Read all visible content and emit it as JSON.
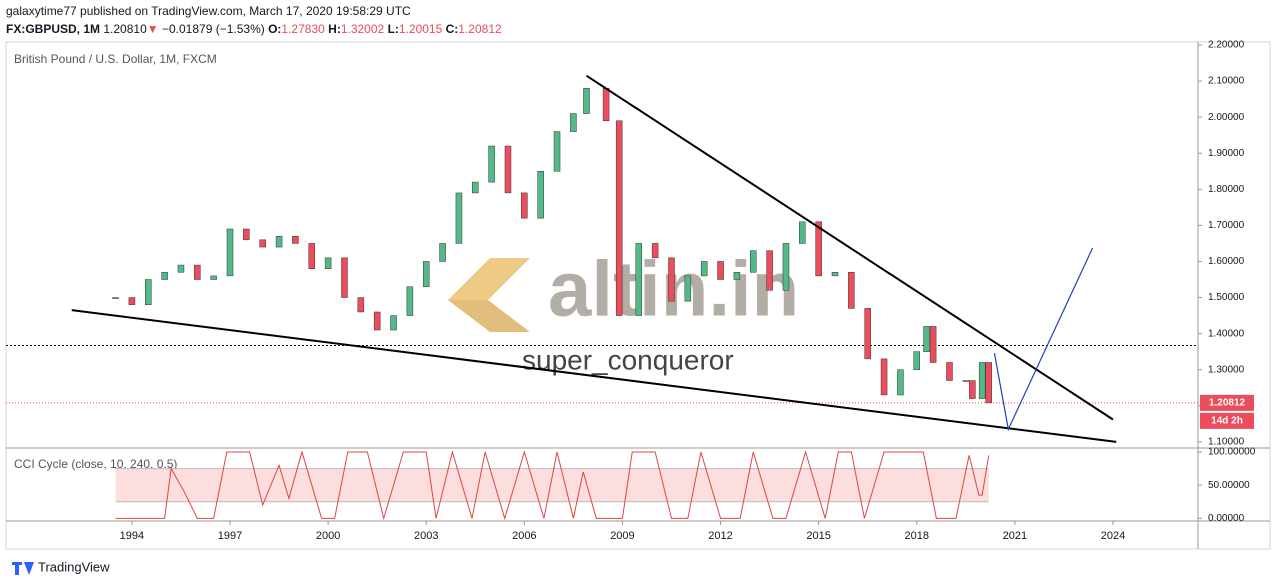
{
  "header": {
    "publisher": "galaxytime77 published on TradingView.com, March 17, 2020 19:58:29 UTC",
    "symbol": "FX:GBPUSD, 1M",
    "last": "1.20810",
    "arrow": "▼",
    "change": "−0.01879 (−1.53%)",
    "ohlc": [
      {
        "label": "O:",
        "value": "1.27830"
      },
      {
        "label": "H:",
        "value": "1.32002"
      },
      {
        "label": "L:",
        "value": "1.20015"
      },
      {
        "label": "C:",
        "value": "1.20812"
      }
    ]
  },
  "footer": "TradingView",
  "watermark": {
    "brand": "altin.in",
    "author": "super_conqueror"
  },
  "chart_data": [
    {
      "type": "candlestick",
      "title": "British Pound / U.S. Dollar, 1M, FXCM",
      "x": [
        1993.5,
        1994,
        1994.5,
        1995,
        1995.5,
        1996,
        1996.5,
        1997,
        1997.5,
        1998,
        1998.5,
        1999,
        1999.5,
        2000,
        2000.5,
        2001,
        2001.5,
        2002,
        2002.5,
        2003,
        2003.5,
        2004,
        2004.5,
        2005,
        2005.5,
        2006,
        2006.5,
        2007,
        2007.5,
        2007.9,
        2008.5,
        2008.9,
        2009.5,
        2010,
        2010.5,
        2011,
        2011.5,
        2012,
        2012.5,
        2013,
        2013.5,
        2014,
        2014.5,
        2015,
        2015.5,
        2016,
        2016.5,
        2017,
        2017.5,
        2018,
        2018.3,
        2018.5,
        2019,
        2019.5,
        2019.7,
        2020,
        2020.2
      ],
      "series": [
        {
          "name": "GBPUSD",
          "up_color": "#53b987",
          "down_color": "#eb4d5c",
          "values": [
            1.5,
            1.48,
            1.55,
            1.57,
            1.59,
            1.55,
            1.56,
            1.69,
            1.66,
            1.64,
            1.67,
            1.65,
            1.58,
            1.61,
            1.5,
            1.46,
            1.41,
            1.45,
            1.53,
            1.6,
            1.65,
            1.79,
            1.82,
            1.92,
            1.79,
            1.72,
            1.85,
            1.96,
            2.01,
            2.08,
            1.99,
            1.45,
            1.65,
            1.61,
            1.49,
            1.56,
            1.6,
            1.55,
            1.57,
            1.63,
            1.52,
            1.65,
            1.71,
            1.56,
            1.57,
            1.47,
            1.33,
            1.23,
            1.3,
            1.35,
            1.42,
            1.32,
            1.27,
            1.27,
            1.22,
            1.32,
            1.20812
          ]
        }
      ],
      "xlim": [
        1990.15,
        2026.6
      ],
      "xticks": [
        1994,
        1997,
        2000,
        2003,
        2006,
        2009,
        2012,
        2015,
        2018,
        2021,
        2024
      ],
      "ylim": [
        1.083,
        2.2
      ],
      "yticks": [
        {
          "value": 1.1,
          "label": "1.10000"
        },
        {
          "value": 1.2,
          "label": "1.20000"
        },
        {
          "value": 1.3,
          "label": "1.30000"
        },
        {
          "value": 1.4,
          "label": "1.40000"
        },
        {
          "value": 1.5,
          "label": "1.50000"
        },
        {
          "value": 1.6,
          "label": "1.60000"
        },
        {
          "value": 1.7,
          "label": "1.70000"
        },
        {
          "value": 1.8,
          "label": "1.80000"
        },
        {
          "value": 1.9,
          "label": "1.90000"
        },
        {
          "value": 2.0,
          "label": "2.00000"
        },
        {
          "value": 2.1,
          "label": "2.10000"
        },
        {
          "value": 2.2,
          "label": "2.20000"
        }
      ],
      "price_label": {
        "value": 1.20812,
        "label": "1.20812"
      },
      "countdown": "14d 2h",
      "level": 1.367,
      "trendlines": [
        {
          "x": [
            2007.9,
            2024
          ],
          "y": [
            2.115,
            1.162
          ],
          "color": "#000000"
        },
        {
          "x": [
            1992.16,
            2024.1
          ],
          "y": [
            1.465,
            1.1
          ],
          "color": "#000000"
        },
        {
          "x": [
            2020.375,
            2020.8,
            2023.375
          ],
          "y": [
            1.346,
            1.135,
            1.637
          ],
          "color": "#1e3fbf"
        }
      ]
    },
    {
      "type": "line",
      "title": "CCI Cycle (close, 10, 240, 0.5)",
      "color": "#e0443e",
      "band": [
        25,
        75
      ],
      "band_color": "#fcdede",
      "x": [
        1993.5,
        1995,
        1995.2,
        1995.6,
        1996,
        1996.5,
        1996.9,
        1997.6,
        1998,
        1998.5,
        1998.8,
        1999.2,
        1999.8,
        2000.2,
        2000.6,
        2001.2,
        2001.7,
        2002.3,
        2003,
        2003.3,
        2003.8,
        2004.4,
        2004.8,
        2005.4,
        2006,
        2006.6,
        2007,
        2007.5,
        2007.8,
        2008.2,
        2009,
        2009.3,
        2010,
        2010.5,
        2011,
        2011.4,
        2012,
        2012.6,
        2013,
        2013.6,
        2014,
        2014.6,
        2015.2,
        2015.6,
        2016,
        2016.4,
        2017,
        2018.2,
        2018.6,
        2019.2,
        2019.6,
        2019.9,
        2020,
        2020.2
      ],
      "values": [
        0,
        0,
        75,
        40,
        0,
        0,
        100,
        100,
        20,
        80,
        30,
        100,
        0,
        0,
        100,
        100,
        0,
        100,
        100,
        0,
        100,
        0,
        100,
        0,
        100,
        0,
        100,
        0,
        70,
        0,
        0,
        100,
        100,
        0,
        0,
        100,
        0,
        0,
        100,
        0,
        0,
        100,
        0,
        100,
        100,
        0,
        100,
        100,
        0,
        0,
        95,
        35,
        35,
        95
      ],
      "ylim": [
        -4,
        106
      ],
      "yticks": [
        {
          "value": 0,
          "label": "0.00000"
        },
        {
          "value": 50,
          "label": "50.00000"
        },
        {
          "value": 100,
          "label": "100.00000"
        }
      ]
    }
  ]
}
